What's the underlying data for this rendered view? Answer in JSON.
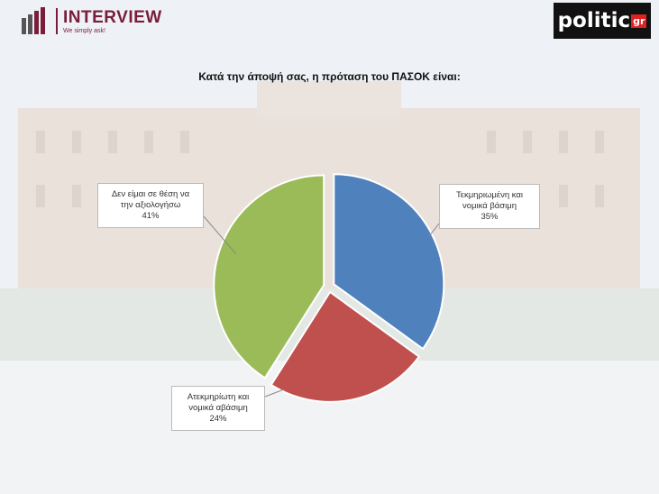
{
  "header": {
    "logo_left": "INTERVIEW",
    "tagline": "We simply ask!",
    "logo_right": "politic",
    "logo_right_suffix": "gr"
  },
  "chart_data": {
    "type": "pie",
    "title": "Κατά την άποψή σας, η πρόταση του ΠΑΣΟΚ είναι:",
    "categories": [
      "Τεκμηριωμένη και νομικά βάσιμη",
      "Ατεκμηρίωτη και νομικά αβάσιμη",
      "Δεν είμαι σε θέση να την αξιολογήσω"
    ],
    "values": [
      35,
      24,
      41
    ],
    "value_labels": [
      "35%",
      "24%",
      "41%"
    ],
    "colors": [
      "#4f81bd",
      "#c0504d",
      "#9bbb59"
    ]
  }
}
